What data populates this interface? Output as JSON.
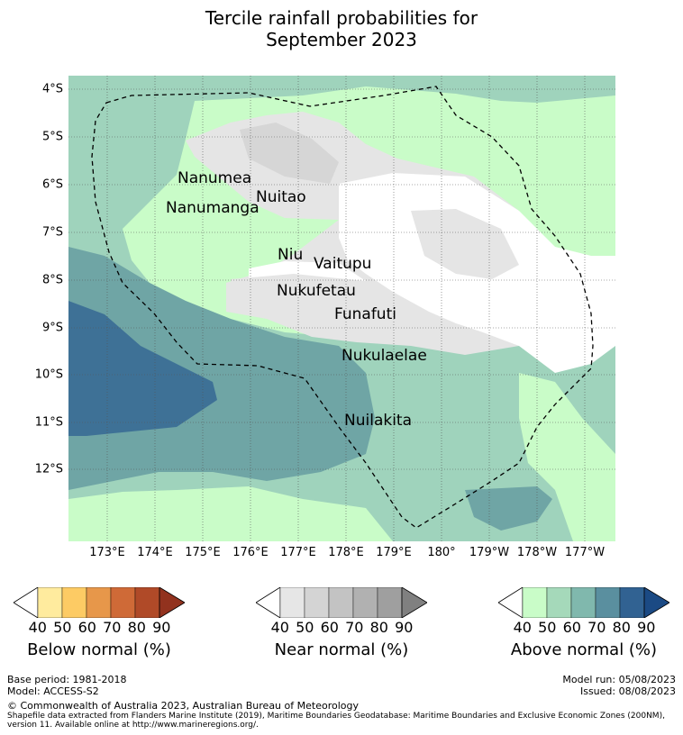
{
  "title": {
    "line1": "Tercile rainfall probabilities for",
    "line2": "September 2023"
  },
  "map": {
    "lat_labels": [
      "4°S",
      "5°S",
      "6°S",
      "7°S",
      "8°S",
      "9°S",
      "10°S",
      "11°S",
      "12°S"
    ],
    "lon_labels": [
      "173°E",
      "174°E",
      "175°E",
      "176°E",
      "177°E",
      "178°E",
      "179°E",
      "180°",
      "179°W",
      "178°W",
      "177°W"
    ],
    "islands": [
      "Nanumea",
      "Nuitao",
      "Nanumanga",
      "Niu",
      "Vaitupu",
      "Nukufetau",
      "Funafuti",
      "Nukulaelae",
      "Nuilakita"
    ],
    "colors": {
      "above_50": "#c9fcc8",
      "above_60": "#9fd3bc",
      "above_70": "#6fa5a5",
      "above_80": "#3e7196",
      "near_50": "#e5e5e5",
      "near_60": "#d6d6d6",
      "white": "#ffffff"
    }
  },
  "colorbars": [
    {
      "label": "Below normal (%)",
      "ticks": [
        "40",
        "50",
        "60",
        "70",
        "80",
        "90"
      ],
      "colors": [
        "#ffffff",
        "#ffeb9e",
        "#fdcb64",
        "#e7974a",
        "#cf6a37",
        "#b04a28",
        "#92321e"
      ]
    },
    {
      "label": "Near normal (%)",
      "ticks": [
        "40",
        "50",
        "60",
        "70",
        "80",
        "90"
      ],
      "colors": [
        "#ffffff",
        "#e6e6e6",
        "#d4d4d4",
        "#c3c3c3",
        "#b1b1b1",
        "#9f9f9f",
        "#808080"
      ]
    },
    {
      "label": "Above normal (%)",
      "ticks": [
        "40",
        "50",
        "60",
        "70",
        "80",
        "90"
      ],
      "colors": [
        "#ffffff",
        "#c9fcc8",
        "#a5d9ba",
        "#80b8ad",
        "#5a8f9f",
        "#316292",
        "#1b4a84"
      ]
    }
  ],
  "footer": {
    "base_period": "Base period: 1981-2018",
    "model": "Model: ACCESS-S2",
    "model_run": "Model run: 05/08/2023",
    "issued": "Issued: 08/08/2023",
    "copyright": "© Commonwealth of Australia 2023, Australian Bureau of Meteorology",
    "shapefile": "Shapefile data extracted from Flanders Marine Institute (2019), Maritime Boundaries Geodatabase: Maritime Boundaries and Exclusive Economic Zones (200NM), version 11. Available online at http://www.marineregions.org/."
  }
}
